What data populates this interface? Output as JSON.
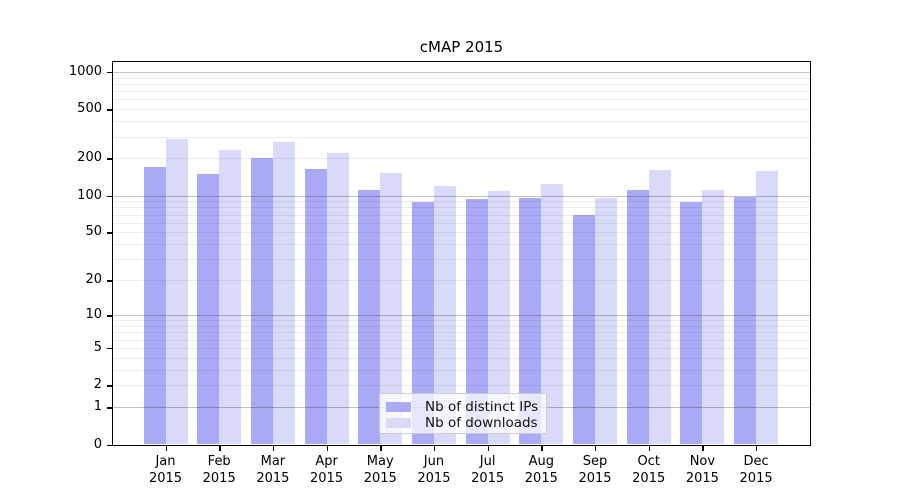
{
  "chart_data": {
    "type": "bar",
    "title": "cMAP 2015",
    "categories": [
      "Jan 2015",
      "Feb 2015",
      "Mar 2015",
      "Apr 2015",
      "May 2015",
      "Jun 2015",
      "Jul 2015",
      "Aug 2015",
      "Sep 2015",
      "Oct 2015",
      "Nov 2015",
      "Dec 2015"
    ],
    "series": [
      {
        "name": "Nb of distinct IPs",
        "color": "#aaaaf7",
        "values": [
          172,
          151,
          200,
          165,
          110,
          88,
          93,
          95,
          70,
          110,
          89,
          98
        ]
      },
      {
        "name": "Nb of downloads",
        "color": "#d9d9fa",
        "values": [
          288,
          235,
          273,
          222,
          153,
          120,
          108,
          125,
          95,
          160,
          112,
          157
        ]
      }
    ],
    "yscale": "mirrorLog",
    "yticks": [
      0,
      1,
      2,
      5,
      10,
      20,
      50,
      100,
      200,
      500,
      1000
    ],
    "ylim": [
      0,
      1200
    ],
    "grid": {
      "major_at": [
        1,
        10,
        100,
        1000
      ],
      "minor_at": "2-9, 20-90, 200-900"
    },
    "legend_position": "bottom-center",
    "colors": {
      "bar_dark": "#aaaaf7",
      "bar_light": "#d9d9fa",
      "grid_major": "#c2c2c2",
      "grid_minor": "#ededed",
      "axis": "#000000",
      "legend_border": "#cccccc"
    }
  }
}
